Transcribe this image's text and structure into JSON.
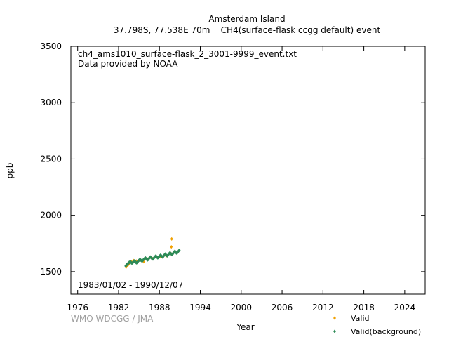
{
  "chart_data": {
    "type": "scatter",
    "title_line1": "Amsterdam Island",
    "title_line2": "37.798S, 77.538E 70m    CH4(surface-flask ccgg default) event",
    "file_label": "ch4_ams1010_surface-flask_2_3001-9999_event.txt",
    "provider": "Data provided by NOAA",
    "date_range": "1983/01/02 - 1990/12/07",
    "credit": "WMO WDCGG / JMA",
    "xlabel": "Year",
    "ylabel": "ppb",
    "xlim": [
      1975,
      2027
    ],
    "ylim": [
      1300,
      3500
    ],
    "xticks": [
      1976,
      1982,
      1988,
      1994,
      2000,
      2006,
      2012,
      2018,
      2024
    ],
    "yticks": [
      1500,
      2000,
      2500,
      3000,
      3500
    ],
    "grid": false,
    "legend_position": "bottom-right",
    "series": [
      {
        "name": "Valid",
        "color": "#f0a000",
        "marker": "diamond",
        "points": [
          [
            1983.1,
            1540
          ],
          [
            1983.2,
            1548
          ],
          [
            1983.4,
            1560
          ],
          [
            1983.6,
            1574
          ],
          [
            1983.9,
            1586
          ],
          [
            1984.2,
            1598
          ],
          [
            1984.6,
            1594
          ],
          [
            1985.1,
            1602
          ],
          [
            1985.7,
            1588
          ],
          [
            1986.3,
            1610
          ],
          [
            1987.0,
            1615
          ],
          [
            1988.2,
            1630
          ],
          [
            1989.0,
            1640
          ],
          [
            1989.7,
            1660
          ],
          [
            1989.75,
            1720
          ],
          [
            1989.8,
            1790
          ]
        ]
      },
      {
        "name": "Valid(background)",
        "color": "#2e8b57",
        "marker": "diamond",
        "points": [
          [
            1983.05,
            1550
          ],
          [
            1983.15,
            1558
          ],
          [
            1983.25,
            1565
          ],
          [
            1983.35,
            1570
          ],
          [
            1983.45,
            1575
          ],
          [
            1983.55,
            1582
          ],
          [
            1983.65,
            1585
          ],
          [
            1983.75,
            1590
          ],
          [
            1983.85,
            1580
          ],
          [
            1983.95,
            1575
          ],
          [
            1984.05,
            1578
          ],
          [
            1984.15,
            1585
          ],
          [
            1984.25,
            1592
          ],
          [
            1984.35,
            1596
          ],
          [
            1984.45,
            1590
          ],
          [
            1984.55,
            1582
          ],
          [
            1984.65,
            1578
          ],
          [
            1984.75,
            1582
          ],
          [
            1984.85,
            1590
          ],
          [
            1984.95,
            1598
          ],
          [
            1985.05,
            1604
          ],
          [
            1985.15,
            1608
          ],
          [
            1985.25,
            1603
          ],
          [
            1985.35,
            1598
          ],
          [
            1985.45,
            1594
          ],
          [
            1985.55,
            1598
          ],
          [
            1985.65,
            1606
          ],
          [
            1985.75,
            1612
          ],
          [
            1985.85,
            1618
          ],
          [
            1985.95,
            1622
          ],
          [
            1986.05,
            1616
          ],
          [
            1986.15,
            1608
          ],
          [
            1986.25,
            1604
          ],
          [
            1986.35,
            1608
          ],
          [
            1986.45,
            1616
          ],
          [
            1986.55,
            1624
          ],
          [
            1986.65,
            1630
          ],
          [
            1986.75,
            1626
          ],
          [
            1986.85,
            1620
          ],
          [
            1986.95,
            1614
          ],
          [
            1987.05,
            1612
          ],
          [
            1987.15,
            1618
          ],
          [
            1987.25,
            1626
          ],
          [
            1987.35,
            1632
          ],
          [
            1987.45,
            1638
          ],
          [
            1987.55,
            1634
          ],
          [
            1987.65,
            1628
          ],
          [
            1987.75,
            1622
          ],
          [
            1987.85,
            1626
          ],
          [
            1987.95,
            1634
          ],
          [
            1988.05,
            1640
          ],
          [
            1988.15,
            1646
          ],
          [
            1988.25,
            1642
          ],
          [
            1988.35,
            1636
          ],
          [
            1988.45,
            1630
          ],
          [
            1988.55,
            1634
          ],
          [
            1988.65,
            1642
          ],
          [
            1988.75,
            1650
          ],
          [
            1988.85,
            1656
          ],
          [
            1988.95,
            1650
          ],
          [
            1989.05,
            1644
          ],
          [
            1989.15,
            1640
          ],
          [
            1989.25,
            1646
          ],
          [
            1989.35,
            1654
          ],
          [
            1989.45,
            1662
          ],
          [
            1989.55,
            1668
          ],
          [
            1989.65,
            1662
          ],
          [
            1989.75,
            1656
          ],
          [
            1989.85,
            1652
          ],
          [
            1989.95,
            1658
          ],
          [
            1990.05,
            1666
          ],
          [
            1990.15,
            1674
          ],
          [
            1990.25,
            1680
          ],
          [
            1990.35,
            1676
          ],
          [
            1990.45,
            1668
          ],
          [
            1990.55,
            1664
          ],
          [
            1990.65,
            1670
          ],
          [
            1990.75,
            1678
          ],
          [
            1990.85,
            1686
          ],
          [
            1990.92,
            1690
          ]
        ]
      }
    ]
  }
}
